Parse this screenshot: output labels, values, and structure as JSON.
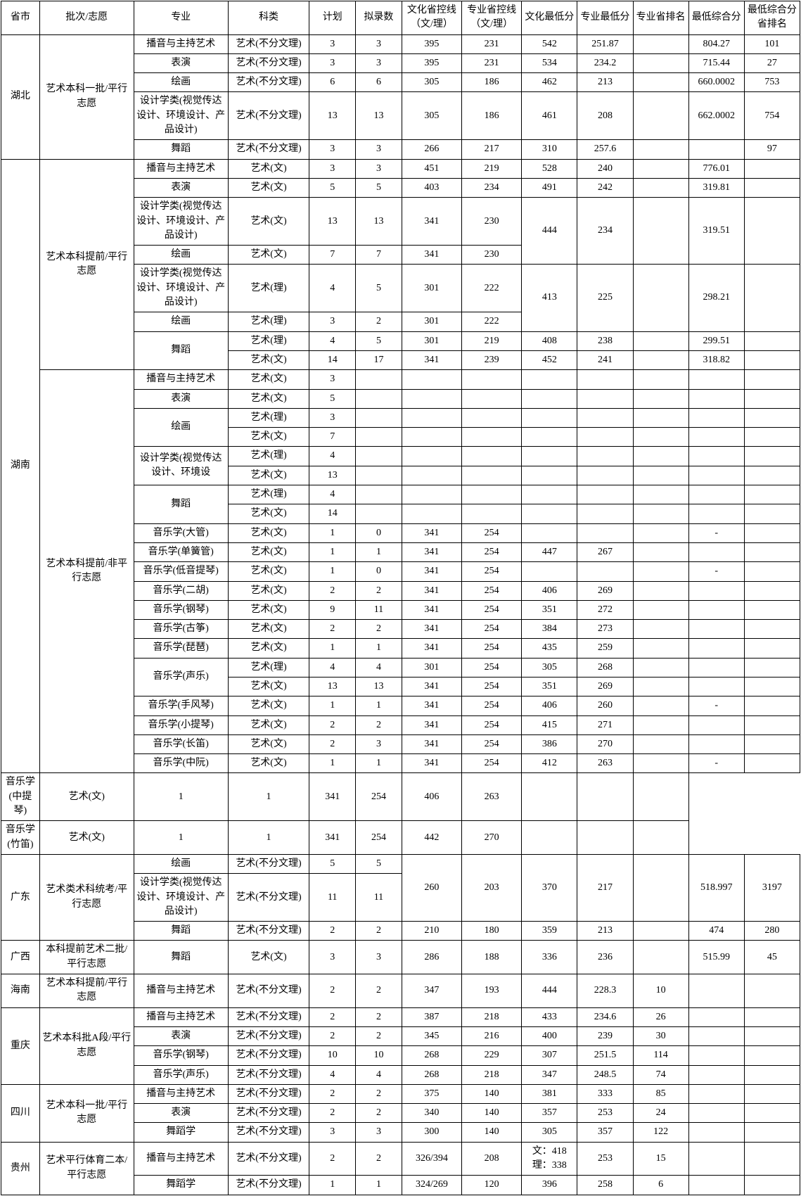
{
  "headers": [
    "省市",
    "批次/志愿",
    "专业",
    "科类",
    "计划",
    "拟录数",
    "文化省控线（文/理）",
    "专业省控线（文/理）",
    "文化最低分",
    "专业最低分",
    "专业省排名",
    "最低综合分",
    "最低综合分省排名"
  ],
  "groups": [
    {
      "province": "湖北",
      "batches": [
        {
          "batch": "艺术本科一批/平行志愿",
          "rows": [
            {
              "c": [
                "播音与主持艺术",
                "艺术(不分文理)",
                "3",
                "3",
                "395",
                "231",
                "542",
                "251.87",
                "",
                "804.27",
                "101"
              ]
            },
            {
              "c": [
                "表演",
                "艺术(不分文理)",
                "3",
                "3",
                "395",
                "231",
                "534",
                "234.2",
                "",
                "715.44",
                "27"
              ]
            },
            {
              "c": [
                "绘画",
                "艺术(不分文理)",
                "6",
                "6",
                "305",
                "186",
                "462",
                "213",
                "",
                "660.0002",
                "753"
              ]
            },
            {
              "c": [
                "设计学类(视觉传达设计、环境设计、产品设计)",
                "艺术(不分文理)",
                "13",
                "13",
                "305",
                "186",
                "461",
                "208",
                "",
                "662.0002",
                "754"
              ]
            },
            {
              "c": [
                "舞蹈",
                "艺术(不分文理)",
                "3",
                "3",
                "266",
                "217",
                "310",
                "257.6",
                "",
                "",
                "97"
              ]
            }
          ]
        }
      ]
    },
    {
      "province": "湖南",
      "batches": [
        {
          "batch": "艺术本科提前/平行志愿"
        },
        {
          "batch": "艺术本科提前/非平行志愿"
        }
      ]
    }
  ],
  "h_rows1": [
    {
      "c": [
        "播音与主持艺术",
        "艺术(文)",
        "3",
        "3",
        "451",
        "219",
        "528",
        "240",
        "",
        "776.01",
        ""
      ]
    },
    {
      "c": [
        "表演",
        "艺术(文)",
        "5",
        "5",
        "403",
        "234",
        "491",
        "242",
        "",
        "319.81",
        ""
      ]
    }
  ],
  "h_design_a": {
    "major": "设计学类(视觉传达设计、环境设计、产品设计)",
    "subj": "艺术(文)",
    "plan": "13",
    "enroll": "13",
    "cline": "341",
    "pline": "230",
    "cmin": "444",
    "pmin": "234",
    "comp": "319.51"
  },
  "h_paint_a": {
    "major": "绘画",
    "subj": "艺术(文)",
    "plan": "7",
    "enroll": "7",
    "cline": "341",
    "pline": "230"
  },
  "h_design_b": {
    "major": "设计学类(视觉传达设计、环境设计、产品设计)",
    "subj": "艺术(理)",
    "plan": "4",
    "enroll": "5",
    "cline": "301",
    "pline": "222",
    "cmin": "413",
    "pmin": "225",
    "comp": "298.21"
  },
  "h_paint_b": {
    "major": "绘画",
    "subj": "艺术(理)",
    "plan": "3",
    "enroll": "2",
    "cline": "301",
    "pline": "222"
  },
  "h_dance": {
    "major": "舞蹈",
    "rows": [
      {
        "c": [
          "艺术(理)",
          "4",
          "5",
          "301",
          "219",
          "408",
          "238",
          "",
          "299.51",
          ""
        ]
      },
      {
        "c": [
          "艺术(文)",
          "14",
          "17",
          "341",
          "239",
          "452",
          "241",
          "",
          "318.82",
          ""
        ]
      }
    ]
  },
  "h2_rows": [
    {
      "c": [
        "播音与主持艺术",
        "艺术(文)",
        "3",
        "",
        "",
        "",
        "",
        "",
        "",
        "",
        ""
      ]
    },
    {
      "c": [
        "表演",
        "艺术(文)",
        "5",
        "",
        "",
        "",
        "",
        "",
        "",
        "",
        ""
      ]
    }
  ],
  "h2_paint": {
    "major": "绘画",
    "rows": [
      {
        "c": [
          "艺术(理)",
          "3",
          "",
          "",
          "",
          "",
          "",
          "",
          "",
          ""
        ]
      },
      {
        "c": [
          "艺术(文)",
          "7",
          "",
          "",
          "",
          "",
          "",
          "",
          "",
          ""
        ]
      }
    ]
  },
  "h2_design": {
    "major": "设计学类(视觉传达设计、环境设",
    "rows": [
      {
        "c": [
          "艺术(理)",
          "4",
          "",
          "",
          "",
          "",
          "",
          "",
          "",
          ""
        ]
      },
      {
        "c": [
          "艺术(文)",
          "13",
          "",
          "",
          "",
          "",
          "",
          "",
          "",
          ""
        ]
      }
    ]
  },
  "h2_dance": {
    "major": "舞蹈",
    "rows": [
      {
        "c": [
          "艺术(理)",
          "4",
          "",
          "",
          "",
          "",
          "",
          "",
          "",
          ""
        ]
      },
      {
        "c": [
          "艺术(文)",
          "14",
          "",
          "",
          "",
          "",
          "",
          "",
          "",
          ""
        ]
      }
    ]
  },
  "h2_music": [
    {
      "c": [
        "音乐学(大管)",
        "艺术(文)",
        "1",
        "0",
        "341",
        "254",
        "",
        "",
        "",
        "-",
        ""
      ]
    },
    {
      "c": [
        "音乐学(单簧管)",
        "艺术(文)",
        "1",
        "1",
        "341",
        "254",
        "447",
        "267",
        "",
        "",
        ""
      ]
    },
    {
      "c": [
        "音乐学(低音提琴)",
        "艺术(文)",
        "1",
        "0",
        "341",
        "254",
        "",
        "",
        "",
        "-",
        ""
      ]
    },
    {
      "c": [
        "音乐学(二胡)",
        "艺术(文)",
        "2",
        "2",
        "341",
        "254",
        "406",
        "269",
        "",
        "",
        ""
      ]
    },
    {
      "c": [
        "音乐学(钢琴)",
        "艺术(文)",
        "9",
        "11",
        "341",
        "254",
        "351",
        "272",
        "",
        "",
        ""
      ]
    },
    {
      "c": [
        "音乐学(古筝)",
        "艺术(文)",
        "2",
        "2",
        "341",
        "254",
        "384",
        "273",
        "",
        "",
        ""
      ]
    },
    {
      "c": [
        "音乐学(琵琶)",
        "艺术(文)",
        "1",
        "1",
        "341",
        "254",
        "435",
        "259",
        "",
        "",
        ""
      ]
    }
  ],
  "h2_vocal": {
    "major": "音乐学(声乐)",
    "rows": [
      {
        "c": [
          "艺术(理)",
          "4",
          "4",
          "301",
          "254",
          "305",
          "268",
          "",
          "",
          ""
        ]
      },
      {
        "c": [
          "艺术(文)",
          "13",
          "13",
          "341",
          "254",
          "351",
          "269",
          "",
          "",
          ""
        ]
      }
    ]
  },
  "h2_music2": [
    {
      "c": [
        "音乐学(手风琴)",
        "艺术(文)",
        "1",
        "1",
        "341",
        "254",
        "406",
        "260",
        "",
        "-",
        ""
      ]
    },
    {
      "c": [
        "音乐学(小提琴)",
        "艺术(文)",
        "2",
        "2",
        "341",
        "254",
        "415",
        "271",
        "",
        "",
        ""
      ]
    },
    {
      "c": [
        "音乐学(长笛)",
        "艺术(文)",
        "2",
        "3",
        "341",
        "254",
        "386",
        "270",
        "",
        "",
        ""
      ]
    },
    {
      "c": [
        "音乐学(中阮)",
        "艺术(文)",
        "1",
        "1",
        "341",
        "254",
        "412",
        "263",
        "",
        "-",
        ""
      ]
    },
    {
      "c": [
        "音乐学(中提琴)",
        "艺术(文)",
        "1",
        "1",
        "341",
        "254",
        "406",
        "263",
        "",
        "",
        ""
      ]
    },
    {
      "c": [
        "音乐学(竹笛)",
        "艺术(文)",
        "1",
        "1",
        "341",
        "254",
        "442",
        "270",
        "",
        "",
        ""
      ]
    }
  ],
  "gd": {
    "province": "广东",
    "batch": "艺术类术科统考/平行志愿",
    "paint": {
      "c": [
        "绘画",
        "艺术(不分文理)",
        "5",
        "5"
      ]
    },
    "design": {
      "c": [
        "设计学类(视觉传达设计、环境设计、产品设计)",
        "艺术(不分文理)",
        "11",
        "11"
      ],
      "cline": "260",
      "pline": "203",
      "cmin": "370",
      "pmin": "217",
      "comp": "518.997",
      "rank": "3197"
    },
    "dance": {
      "c": [
        "舞蹈",
        "艺术(不分文理)",
        "2",
        "2",
        "210",
        "180",
        "359",
        "213",
        "",
        "474",
        "280"
      ]
    }
  },
  "gx": {
    "province": "广西",
    "batch": "本科提前艺术二批/平行志愿",
    "row": {
      "c": [
        "舞蹈",
        "艺术(文)",
        "3",
        "3",
        "286",
        "188",
        "336",
        "236",
        "",
        "515.99",
        "45"
      ]
    }
  },
  "hn": {
    "province": "海南",
    "batch": "艺术本科提前/平行志愿",
    "row": {
      "c": [
        "播音与主持艺术",
        "艺术(不分文理)",
        "2",
        "2",
        "347",
        "193",
        "444",
        "228.3",
        "10",
        "",
        ""
      ]
    }
  },
  "cq": {
    "province": "重庆",
    "batch": "艺术本科批A段/平行志愿",
    "rows": [
      {
        "c": [
          "播音与主持艺术",
          "艺术(不分文理)",
          "2",
          "2",
          "387",
          "218",
          "433",
          "234.6",
          "26",
          "",
          ""
        ]
      },
      {
        "c": [
          "表演",
          "艺术(不分文理)",
          "2",
          "2",
          "345",
          "216",
          "400",
          "239",
          "30",
          "",
          ""
        ]
      },
      {
        "c": [
          "音乐学(钢琴)",
          "艺术(不分文理)",
          "10",
          "10",
          "268",
          "229",
          "307",
          "251.5",
          "114",
          "",
          ""
        ]
      },
      {
        "c": [
          "音乐学(声乐)",
          "艺术(不分文理)",
          "4",
          "4",
          "268",
          "218",
          "347",
          "248.5",
          "74",
          "",
          ""
        ]
      }
    ]
  },
  "sc": {
    "province": "四川",
    "batch": "艺术本科一批/平行志愿",
    "rows": [
      {
        "c": [
          "播音与主持艺术",
          "艺术(不分文理)",
          "2",
          "2",
          "375",
          "140",
          "381",
          "333",
          "85",
          "",
          ""
        ]
      },
      {
        "c": [
          "表演",
          "艺术(不分文理)",
          "2",
          "2",
          "340",
          "140",
          "357",
          "253",
          "24",
          "",
          ""
        ]
      },
      {
        "c": [
          "舞蹈学",
          "艺术(不分文理)",
          "3",
          "3",
          "300",
          "140",
          "305",
          "357",
          "122",
          "",
          ""
        ]
      }
    ]
  },
  "gz": {
    "province": "贵州",
    "batch": "艺术平行体育二本/平行志愿",
    "rows": [
      {
        "c": [
          "播音与主持艺术",
          "艺术(不分文理)",
          "2",
          "2",
          "326/394",
          "208",
          "文：418 理：338",
          "253",
          "15",
          "",
          ""
        ]
      },
      {
        "c": [
          "舞蹈学",
          "艺术(不分文理)",
          "1",
          "1",
          "324/269",
          "120",
          "396",
          "258",
          "6",
          "",
          ""
        ]
      }
    ]
  }
}
